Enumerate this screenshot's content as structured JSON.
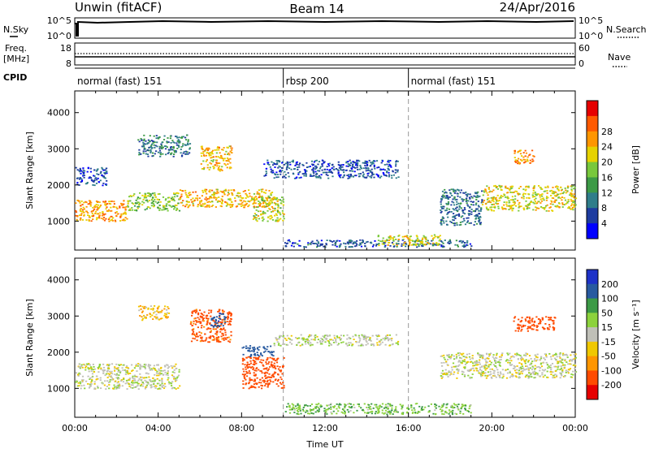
{
  "header": {
    "station": "Unwin (fitACF)",
    "beam": "Beam 14",
    "date": "24/Apr/2016"
  },
  "strips": {
    "nsky_label": "N.Sky",
    "nsky_ticks": [
      "10^5",
      "10^0"
    ],
    "nsearch_label": "N.Search",
    "nsearch_ticks": [
      "10^5",
      "10^0"
    ],
    "freq_label_1": "Freq.",
    "freq_label_2": "[MHz]",
    "freq_ticks": [
      "18",
      "8"
    ],
    "nave_label": "Nave",
    "nave_ticks": [
      "60",
      "0"
    ],
    "cpid_label": "CPID",
    "cpid_segments": [
      {
        "name": "normal (fast) 151",
        "start_hour": 0
      },
      {
        "name": "rbsp 200",
        "start_hour": 10
      },
      {
        "name": "normal (fast) 151",
        "start_hour": 16
      }
    ]
  },
  "chart_data": [
    {
      "type": "heatmap",
      "title": "",
      "quantity": "Power",
      "ylabel": "Slant Range [km]",
      "ylim": [
        200,
        4600
      ],
      "yticks": [
        "1000",
        "2000",
        "3000",
        "4000"
      ],
      "xlim": [
        0,
        24
      ],
      "colorbar": {
        "label": "Power [dB]",
        "tick_labels": [
          "4",
          "8",
          "12",
          "16",
          "20",
          "24",
          "28"
        ],
        "colors": [
          "#0000ff",
          "#1e3ca0",
          "#2f7d8a",
          "#3c9a46",
          "#78c83c",
          "#e6d200",
          "#ff9600",
          "#ff5a00",
          "#e60000"
        ]
      },
      "regions": [
        {
          "t_start": 0.0,
          "t_end": 2.5,
          "range_start": 1000,
          "range_end": 1600,
          "value": 26
        },
        {
          "t_start": 2.5,
          "t_end": 5.0,
          "range_start": 1300,
          "range_end": 1800,
          "value": 18
        },
        {
          "t_start": 5.0,
          "t_end": 9.5,
          "range_start": 1400,
          "range_end": 1900,
          "value": 24
        },
        {
          "t_start": 6.0,
          "t_end": 7.5,
          "range_start": 2400,
          "range_end": 3100,
          "value": 24
        },
        {
          "t_start": 3.0,
          "t_end": 5.5,
          "range_start": 2800,
          "range_end": 3400,
          "value": 10
        },
        {
          "t_start": 8.5,
          "t_end": 10.0,
          "range_start": 1000,
          "range_end": 1700,
          "value": 20
        },
        {
          "t_start": 9.0,
          "t_end": 15.5,
          "range_start": 2200,
          "range_end": 2700,
          "value": 7
        },
        {
          "t_start": 10.0,
          "t_end": 19.0,
          "range_start": 300,
          "range_end": 500,
          "value": 8
        },
        {
          "t_start": 14.5,
          "t_end": 17.5,
          "range_start": 350,
          "range_end": 650,
          "value": 22
        },
        {
          "t_start": 17.5,
          "t_end": 19.5,
          "range_start": 900,
          "range_end": 1900,
          "value": 9
        },
        {
          "t_start": 19.5,
          "t_end": 24.0,
          "range_start": 1300,
          "range_end": 2000,
          "value": 22
        },
        {
          "t_start": 21.0,
          "t_end": 22.0,
          "range_start": 2600,
          "range_end": 3000,
          "value": 26
        },
        {
          "t_start": 0.0,
          "t_end": 1.5,
          "range_start": 2000,
          "range_end": 2500,
          "value": 6
        }
      ]
    },
    {
      "type": "heatmap",
      "title": "",
      "quantity": "Velocity",
      "ylabel": "Slant Range [km]",
      "ylim": [
        200,
        4600
      ],
      "yticks": [
        "1000",
        "2000",
        "3000",
        "4000"
      ],
      "xlim": [
        0,
        24
      ],
      "xlabel": "Time UT",
      "xticks": [
        "00:00",
        "04:00",
        "08:00",
        "12:00",
        "16:00",
        "20:00",
        "00:00"
      ],
      "colorbar": {
        "label": "Velocity [m s⁻¹]",
        "tick_labels": [
          "200",
          "100",
          "50",
          "15",
          "-15",
          "-50",
          "-100",
          "-200"
        ],
        "colors": [
          "#1e32c8",
          "#285aa0",
          "#3c9a46",
          "#8cd23c",
          "#c0c0b8",
          "#f0c800",
          "#ff9600",
          "#ff4b00",
          "#e60000"
        ]
      },
      "regions": [
        {
          "t_start": 0.0,
          "t_end": 5.0,
          "range_start": 1000,
          "range_end": 1700,
          "value": 0
        },
        {
          "t_start": 5.5,
          "t_end": 7.5,
          "range_start": 2300,
          "range_end": 3200,
          "value": -120
        },
        {
          "t_start": 6.5,
          "t_end": 7.2,
          "range_start": 2700,
          "range_end": 3100,
          "value": 180
        },
        {
          "t_start": 8.0,
          "t_end": 10.0,
          "range_start": 1000,
          "range_end": 1900,
          "value": -150
        },
        {
          "t_start": 8.0,
          "t_end": 9.5,
          "range_start": 1900,
          "range_end": 2200,
          "value": 150
        },
        {
          "t_start": 9.5,
          "t_end": 15.5,
          "range_start": 2200,
          "range_end": 2500,
          "value": 5
        },
        {
          "t_start": 10.0,
          "t_end": 19.0,
          "range_start": 300,
          "range_end": 600,
          "value": 40
        },
        {
          "t_start": 17.5,
          "t_end": 24.0,
          "range_start": 1300,
          "range_end": 2000,
          "value": 0
        },
        {
          "t_start": 21.0,
          "t_end": 23.0,
          "range_start": 2600,
          "range_end": 3000,
          "value": -150
        },
        {
          "t_start": 3.0,
          "t_end": 4.5,
          "range_start": 2900,
          "range_end": 3300,
          "value": -40
        }
      ]
    }
  ]
}
